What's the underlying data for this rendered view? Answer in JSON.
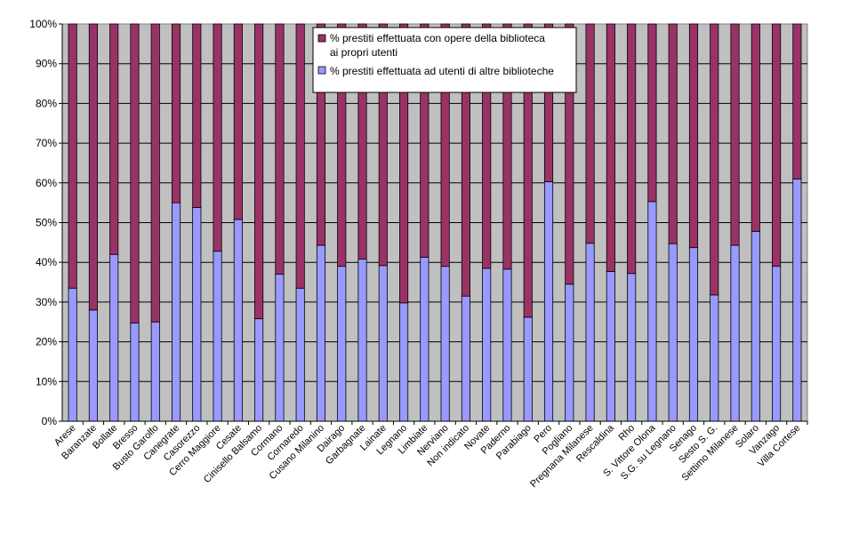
{
  "chart_data": {
    "type": "bar",
    "stacked": true,
    "percent": true,
    "categories": [
      "Arese",
      "Baranzate",
      "Bollate",
      "Bresso",
      "Busto Garolfo",
      "Canegrate",
      "Casorezzo",
      "Cerro Maggiore",
      "Cesate",
      "Cinisello Balsamo",
      "Cormano",
      "Cornaredo",
      "Cusano Milanino",
      "Dairago",
      "Garbagnate",
      "Lainate",
      "Legnano",
      "Limbiate",
      "Nerviano",
      "Non indicato",
      "Novate",
      "Paderno",
      "Parabiago",
      "Pero",
      "Pogliano",
      "Pregnana Milanese",
      "Rescaldina",
      "Rho",
      "S. Vittore Olona",
      "S.G. su Legnano",
      "Senago",
      "Sesto S. G.",
      "Settimo Milanese",
      "Solaro",
      "Vanzago",
      "Villa Cortese"
    ],
    "series": [
      {
        "name": "% prestiti effettuata ad utenti di altre biblioteche",
        "color": "#9999ff",
        "values": [
          33.5,
          28,
          42,
          24.7,
          25,
          55,
          53.8,
          42.8,
          50.8,
          25.8,
          37,
          33.5,
          44.3,
          39,
          40.8,
          39.2,
          29.8,
          41.3,
          39,
          31.5,
          38.5,
          38.3,
          26.2,
          60.3,
          34.5,
          44.8,
          37.7,
          37.2,
          55.3,
          44.7,
          43.7,
          31.8,
          44.3,
          47.8,
          39,
          61
        ]
      },
      {
        "name": "% prestiti effettuata con opere della biblioteca ai propri utenti",
        "color": "#993366",
        "values": [
          66.5,
          72,
          58,
          75.3,
          75,
          45,
          46.2,
          57.2,
          49.2,
          74.2,
          63,
          66.5,
          55.7,
          61,
          59.2,
          60.8,
          70.2,
          58.7,
          61,
          68.5,
          61.5,
          61.7,
          73.8,
          39.7,
          65.5,
          55.2,
          62.3,
          62.8,
          44.7,
          55.3,
          56.3,
          68.2,
          55.7,
          52.2,
          61,
          39
        ]
      }
    ],
    "y_ticks": [
      "0%",
      "10%",
      "20%",
      "30%",
      "40%",
      "50%",
      "60%",
      "70%",
      "80%",
      "90%",
      "100%"
    ],
    "ylim": [
      0,
      100
    ],
    "grid": true,
    "plot_background": "#c0c0c0",
    "legend": {
      "placement": "top-center",
      "entries": [
        "% prestiti effettuata con opere della biblioteca ai propri utenti",
        "% prestiti effettuata ad utenti di altre biblioteche"
      ]
    },
    "title": "",
    "xlabel": "",
    "ylabel": ""
  }
}
